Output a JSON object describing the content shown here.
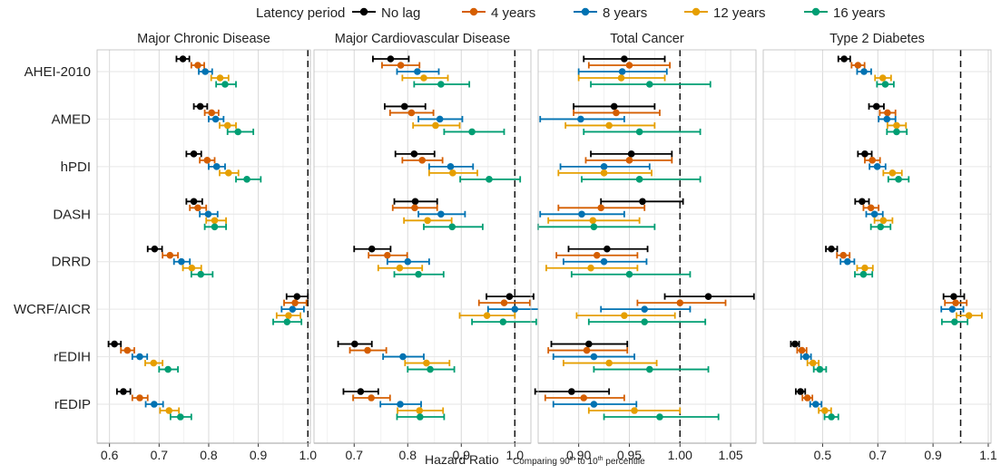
{
  "legend": {
    "title": "Latency period",
    "items": [
      {
        "label": "No lag",
        "color": "#000000"
      },
      {
        "label": "4 years",
        "color": "#D55E00"
      },
      {
        "label": "8 years",
        "color": "#0072B2"
      },
      {
        "label": "12 years",
        "color": "#E69F00"
      },
      {
        "label": "16 years",
        "color": "#009E73"
      }
    ]
  },
  "xlabel": "Hazard Ratio",
  "xlabel_note": {
    "pre": "Comparing 90",
    "sup1": "th",
    "mid": " to 10",
    "sup2": "th",
    "post": " percentile"
  },
  "chart_data": {
    "type": "forest",
    "categories": [
      "AHEI-2010",
      "AMED",
      "hPDI",
      "DASH",
      "DRRD",
      "WCRF/AICR",
      "rEDIH",
      "rEDIP"
    ],
    "series_names": [
      "No lag",
      "4 years",
      "8 years",
      "12 years",
      "16 years"
    ],
    "reference_line": 1.0,
    "grid": true,
    "legend_position": "top",
    "panels": [
      {
        "title": "Major Chronic Disease",
        "xlim": [
          0.575,
          1.005
        ],
        "ticks": [
          0.6,
          0.7,
          0.8,
          0.9,
          1.0
        ],
        "tick_labels": [
          "0.6",
          "0.7",
          "0.8",
          "0.9",
          "1.0"
        ],
        "data": [
          [
            [
              0.748,
              0.735,
              0.761
            ],
            [
              0.778,
              0.765,
              0.791
            ],
            [
              0.793,
              0.78,
              0.807
            ],
            [
              0.823,
              0.805,
              0.84
            ],
            [
              0.833,
              0.815,
              0.855
            ]
          ],
          [
            [
              0.783,
              0.77,
              0.797
            ],
            [
              0.806,
              0.792,
              0.82
            ],
            [
              0.814,
              0.8,
              0.83
            ],
            [
              0.838,
              0.822,
              0.855
            ],
            [
              0.859,
              0.838,
              0.89
            ]
          ],
          [
            [
              0.77,
              0.755,
              0.785
            ],
            [
              0.797,
              0.782,
              0.812
            ],
            [
              0.816,
              0.8,
              0.833
            ],
            [
              0.84,
              0.822,
              0.86
            ],
            [
              0.877,
              0.855,
              0.905
            ]
          ],
          [
            [
              0.77,
              0.755,
              0.787
            ],
            [
              0.778,
              0.762,
              0.795
            ],
            [
              0.799,
              0.782,
              0.818
            ],
            [
              0.812,
              0.795,
              0.835
            ],
            [
              0.812,
              0.792,
              0.835
            ]
          ],
          [
            [
              0.691,
              0.677,
              0.706
            ],
            [
              0.722,
              0.707,
              0.738
            ],
            [
              0.745,
              0.73,
              0.762
            ],
            [
              0.766,
              0.748,
              0.785
            ],
            [
              0.784,
              0.765,
              0.808
            ]
          ],
          [
            [
              0.978,
              0.957,
              1.0
            ],
            [
              0.974,
              0.952,
              0.997
            ],
            [
              0.969,
              0.947,
              0.992
            ],
            [
              0.961,
              0.937,
              0.985
            ],
            [
              0.958,
              0.93,
              0.987
            ]
          ],
          [
            [
              0.61,
              0.598,
              0.623
            ],
            [
              0.636,
              0.623,
              0.65
            ],
            [
              0.661,
              0.646,
              0.676
            ],
            [
              0.689,
              0.672,
              0.707
            ],
            [
              0.718,
              0.7,
              0.738
            ]
          ],
          [
            [
              0.628,
              0.615,
              0.642
            ],
            [
              0.661,
              0.646,
              0.677
            ],
            [
              0.69,
              0.673,
              0.708
            ],
            [
              0.72,
              0.702,
              0.74
            ],
            [
              0.743,
              0.723,
              0.765
            ]
          ]
        ]
      },
      {
        "title": "Major Cardiovascular Disease",
        "xlim": [
          0.625,
          1.03
        ],
        "ticks": [
          0.7,
          0.8,
          0.9,
          1.0
        ],
        "tick_labels": [
          "0.7",
          "0.8",
          "0.9",
          "1.0"
        ],
        "data": [
          [
            [
              0.768,
              0.735,
              0.802
            ],
            [
              0.787,
              0.752,
              0.822
            ],
            [
              0.818,
              0.78,
              0.858
            ],
            [
              0.83,
              0.79,
              0.875
            ],
            [
              0.862,
              0.812,
              0.915
            ]
          ],
          [
            [
              0.794,
              0.757,
              0.833
            ],
            [
              0.807,
              0.767,
              0.848
            ],
            [
              0.86,
              0.82,
              0.902
            ],
            [
              0.852,
              0.81,
              0.897
            ],
            [
              0.92,
              0.868,
              0.98
            ]
          ],
          [
            [
              0.812,
              0.777,
              0.85
            ],
            [
              0.827,
              0.79,
              0.865
            ],
            [
              0.88,
              0.84,
              0.922
            ],
            [
              0.884,
              0.84,
              0.93
            ],
            [
              0.952,
              0.898,
              1.01
            ]
          ],
          [
            [
              0.814,
              0.775,
              0.855
            ],
            [
              0.813,
              0.772,
              0.855
            ],
            [
              0.862,
              0.82,
              0.907
            ],
            [
              0.837,
              0.793,
              0.882
            ],
            [
              0.883,
              0.83,
              0.94
            ]
          ],
          [
            [
              0.733,
              0.7,
              0.768
            ],
            [
              0.762,
              0.727,
              0.799
            ],
            [
              0.8,
              0.762,
              0.84
            ],
            [
              0.785,
              0.745,
              0.827
            ],
            [
              0.82,
              0.775,
              0.867
            ]
          ],
          [
            [
              0.99,
              0.947,
              1.035
            ],
            [
              0.98,
              0.933,
              1.028
            ],
            [
              1.0,
              0.95,
              1.052
            ],
            [
              0.948,
              0.897,
              1.0
            ],
            [
              0.978,
              0.92,
              1.04
            ]
          ],
          [
            [
              0.701,
              0.67,
              0.733
            ],
            [
              0.725,
              0.692,
              0.76
            ],
            [
              0.791,
              0.754,
              0.83
            ],
            [
              0.835,
              0.795,
              0.878
            ],
            [
              0.842,
              0.8,
              0.887
            ]
          ],
          [
            [
              0.712,
              0.68,
              0.745
            ],
            [
              0.732,
              0.698,
              0.767
            ],
            [
              0.786,
              0.749,
              0.825
            ],
            [
              0.822,
              0.781,
              0.866
            ],
            [
              0.823,
              0.78,
              0.868
            ]
          ]
        ]
      },
      {
        "title": "Total Cancer",
        "xlim": [
          0.86,
          1.075
        ],
        "ticks": [
          0.9,
          0.95,
          1.0,
          1.05
        ],
        "tick_labels": [
          "0.90",
          "0.95",
          "1.00",
          "1.05"
        ],
        "data": [
          [
            [
              0.945,
              0.905,
              0.985
            ],
            [
              0.95,
              0.91,
              0.99
            ],
            [
              0.943,
              0.9,
              0.987
            ],
            [
              0.942,
              0.9,
              0.985
            ],
            [
              0.97,
              0.912,
              1.03
            ]
          ],
          [
            [
              0.935,
              0.895,
              0.975
            ],
            [
              0.937,
              0.895,
              0.98
            ],
            [
              0.902,
              0.862,
              0.945
            ],
            [
              0.93,
              0.887,
              0.975
            ],
            [
              0.96,
              0.905,
              1.02
            ]
          ],
          [
            [
              0.952,
              0.912,
              0.992
            ],
            [
              0.95,
              0.907,
              0.992
            ],
            [
              0.925,
              0.882,
              0.97
            ],
            [
              0.925,
              0.88,
              0.972
            ],
            [
              0.96,
              0.903,
              1.02
            ]
          ],
          [
            [
              0.963,
              0.922,
              1.003
            ],
            [
              0.922,
              0.88,
              0.965
            ],
            [
              0.903,
              0.862,
              0.945
            ],
            [
              0.914,
              0.87,
              0.96
            ],
            [
              0.915,
              0.86,
              0.975
            ]
          ],
          [
            [
              0.928,
              0.89,
              0.968
            ],
            [
              0.918,
              0.878,
              0.958
            ],
            [
              0.925,
              0.885,
              0.967
            ],
            [
              0.912,
              0.868,
              0.958
            ],
            [
              0.95,
              0.893,
              1.01
            ]
          ],
          [
            [
              1.028,
              0.985,
              1.073
            ],
            [
              1.0,
              0.958,
              1.045
            ],
            [
              0.965,
              0.922,
              1.01
            ],
            [
              0.945,
              0.898,
              0.995
            ],
            [
              0.965,
              0.91,
              1.025
            ]
          ],
          [
            [
              0.91,
              0.873,
              0.948
            ],
            [
              0.908,
              0.87,
              0.948
            ],
            [
              0.915,
              0.875,
              0.955
            ],
            [
              0.93,
              0.885,
              0.977
            ],
            [
              0.97,
              0.915,
              1.028
            ]
          ],
          [
            [
              0.893,
              0.857,
              0.93
            ],
            [
              0.905,
              0.867,
              0.945
            ],
            [
              0.915,
              0.875,
              0.957
            ],
            [
              0.955,
              0.91,
              1.0
            ],
            [
              0.98,
              0.925,
              1.038
            ]
          ]
        ]
      },
      {
        "title": "Type 2 Diabetes",
        "xlim": [
          0.285,
          1.11
        ],
        "ticks": [
          0.5,
          0.7,
          0.9,
          1.1
        ],
        "tick_labels": [
          "0.5",
          "0.7",
          "0.9",
          "1.1"
        ],
        "data": [
          [
            [
              0.578,
              0.557,
              0.6
            ],
            [
              0.628,
              0.605,
              0.652
            ],
            [
              0.65,
              0.625,
              0.676
            ],
            [
              0.718,
              0.69,
              0.748
            ],
            [
              0.727,
              0.697,
              0.758
            ]
          ],
          [
            [
              0.695,
              0.668,
              0.722
            ],
            [
              0.735,
              0.707,
              0.764
            ],
            [
              0.733,
              0.703,
              0.764
            ],
            [
              0.768,
              0.735,
              0.802
            ],
            [
              0.768,
              0.733,
              0.805
            ]
          ],
          [
            [
              0.653,
              0.628,
              0.678
            ],
            [
              0.68,
              0.653,
              0.708
            ],
            [
              0.698,
              0.67,
              0.728
            ],
            [
              0.753,
              0.72,
              0.787
            ],
            [
              0.775,
              0.738,
              0.812
            ]
          ],
          [
            [
              0.643,
              0.618,
              0.668
            ],
            [
              0.675,
              0.648,
              0.703
            ],
            [
              0.688,
              0.658,
              0.718
            ],
            [
              0.72,
              0.688,
              0.753
            ],
            [
              0.71,
              0.675,
              0.746
            ]
          ],
          [
            [
              0.532,
              0.512,
              0.553
            ],
            [
              0.575,
              0.552,
              0.598
            ],
            [
              0.59,
              0.565,
              0.615
            ],
            [
              0.653,
              0.625,
              0.682
            ],
            [
              0.648,
              0.617,
              0.68
            ]
          ],
          [
            [
              0.975,
              0.938,
              1.013
            ],
            [
              0.982,
              0.943,
              1.022
            ],
            [
              0.97,
              0.93,
              1.01
            ],
            [
              1.03,
              0.985,
              1.077
            ],
            [
              0.978,
              0.932,
              1.025
            ]
          ],
          [
            [
              0.4,
              0.385,
              0.415
            ],
            [
              0.425,
              0.408,
              0.442
            ],
            [
              0.44,
              0.422,
              0.458
            ],
            [
              0.465,
              0.445,
              0.486
            ],
            [
              0.49,
              0.468,
              0.513
            ]
          ],
          [
            [
              0.42,
              0.403,
              0.437
            ],
            [
              0.445,
              0.427,
              0.463
            ],
            [
              0.475,
              0.455,
              0.496
            ],
            [
              0.508,
              0.486,
              0.531
            ],
            [
              0.532,
              0.507,
              0.557
            ]
          ]
        ]
      }
    ]
  }
}
